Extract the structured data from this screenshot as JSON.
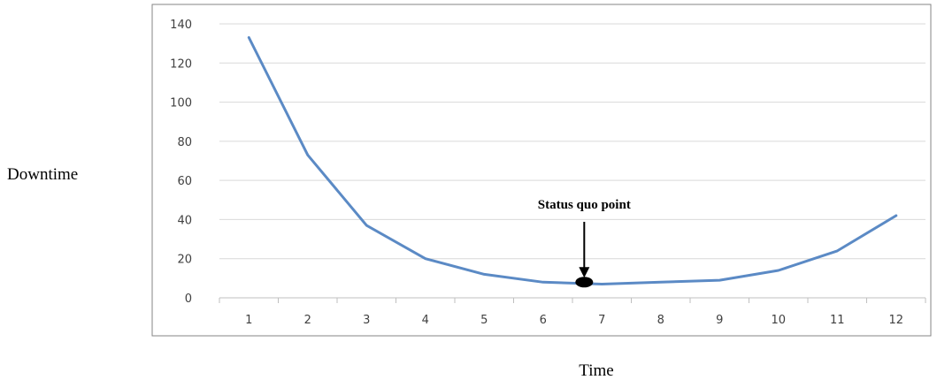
{
  "chart_data": {
    "type": "line",
    "title": "",
    "xlabel": "Time",
    "ylabel": "Downtime",
    "categories": [
      "1",
      "2",
      "3",
      "4",
      "5",
      "6",
      "7",
      "8",
      "9",
      "10",
      "11",
      "12"
    ],
    "series": [
      {
        "values": [
          133,
          73,
          37,
          20,
          12,
          8,
          7,
          8,
          9,
          14,
          24,
          42
        ]
      }
    ],
    "ylim": [
      0,
      140
    ],
    "yticks": [
      0,
      20,
      40,
      60,
      80,
      100,
      120,
      140
    ],
    "grid": "horizontal",
    "legend": "none",
    "annotation": {
      "text": "Status quo point",
      "x": 6.7,
      "y": 8
    }
  },
  "colors": {
    "series": "#5b8ac5",
    "grid": "#d9d9d9",
    "frame": "#868686"
  }
}
